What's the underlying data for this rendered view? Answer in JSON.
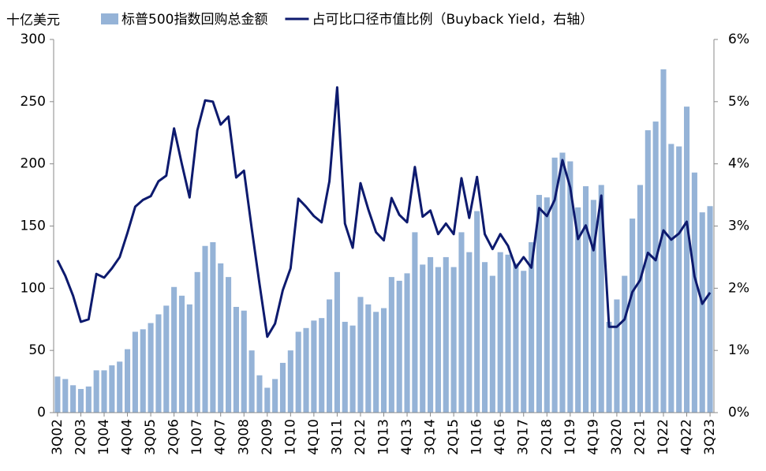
{
  "chart_data": {
    "type": "bar_line",
    "y_label": "十亿美元",
    "categories": [
      "3Q02",
      null,
      null,
      "2Q03",
      null,
      null,
      "1Q04",
      null,
      null,
      "4Q04",
      null,
      null,
      "3Q05",
      null,
      null,
      "2Q06",
      null,
      null,
      "1Q07",
      null,
      null,
      "4Q07",
      null,
      null,
      "3Q08",
      null,
      null,
      "2Q09",
      null,
      null,
      "1Q10",
      null,
      null,
      "4Q10",
      null,
      null,
      "3Q11",
      null,
      null,
      "2Q12",
      null,
      null,
      "1Q13",
      null,
      null,
      "4Q13",
      null,
      null,
      "3Q14",
      null,
      null,
      "2Q15",
      null,
      null,
      "1Q16",
      null,
      null,
      "4Q16",
      null,
      null,
      "3Q17",
      null,
      null,
      "2Q18",
      null,
      null,
      "1Q19",
      null,
      null,
      "4Q19",
      null,
      null,
      "3Q20",
      null,
      null,
      "2Q21",
      null,
      null,
      "1Q22",
      null,
      null,
      "4Q22",
      null,
      null,
      "3Q23"
    ],
    "series": [
      {
        "name": "标普500指数回购总金额",
        "type": "bar",
        "color": "#95b3d7",
        "values": [
          29,
          27,
          22,
          19,
          21,
          34,
          34,
          38,
          41,
          51,
          65,
          67,
          72,
          79,
          86,
          101,
          94,
          87,
          113,
          134,
          137,
          120,
          109,
          85,
          82,
          50,
          30,
          20,
          27,
          40,
          50,
          65,
          68,
          74,
          76,
          91,
          113,
          73,
          70,
          93,
          87,
          81,
          84,
          109,
          106,
          112,
          145,
          119,
          125,
          117,
          125,
          117,
          145,
          129,
          162,
          121,
          110,
          129,
          127,
          120,
          114,
          137,
          175,
          173,
          205,
          209,
          202,
          165,
          182,
          171,
          183,
          73,
          91,
          110,
          156,
          183,
          227,
          234,
          276,
          216,
          214,
          246,
          193,
          161,
          166
        ]
      },
      {
        "name": "占可比口径市值比例（Buyback Yield，右轴）",
        "type": "line",
        "axis": "y2",
        "color": "#0d1a6e",
        "values": [
          2.45,
          2.2,
          1.88,
          1.46,
          1.5,
          2.23,
          2.17,
          2.32,
          2.5,
          2.89,
          3.31,
          3.42,
          3.48,
          3.72,
          3.81,
          4.57,
          4.0,
          3.46,
          4.54,
          5.02,
          5.0,
          4.63,
          4.76,
          3.78,
          3.89,
          2.96,
          2.07,
          1.22,
          1.43,
          1.97,
          2.32,
          3.44,
          3.31,
          3.16,
          3.06,
          3.72,
          5.23,
          3.04,
          2.65,
          3.69,
          3.27,
          2.9,
          2.77,
          3.45,
          3.18,
          3.06,
          3.95,
          3.15,
          3.25,
          2.87,
          3.04,
          2.87,
          3.77,
          3.13,
          3.79,
          2.87,
          2.63,
          2.87,
          2.68,
          2.33,
          2.5,
          2.33,
          3.29,
          3.16,
          3.42,
          4.06,
          3.62,
          2.79,
          3.01,
          2.61,
          3.49,
          1.38,
          1.38,
          1.5,
          1.94,
          2.13,
          2.57,
          2.45,
          2.93,
          2.78,
          2.88,
          3.07,
          2.19,
          1.75,
          1.93
        ]
      }
    ],
    "ylim": [
      0,
      300
    ],
    "yticks": [
      0,
      50,
      100,
      150,
      200,
      250,
      300
    ],
    "y2lim": [
      0,
      6
    ],
    "y2ticks": [
      {
        "value": 0,
        "label": "0%"
      },
      {
        "value": 1,
        "label": "1%"
      },
      {
        "value": 2,
        "label": "2%"
      },
      {
        "value": 3,
        "label": "3%"
      },
      {
        "value": 4,
        "label": "4%"
      },
      {
        "value": 5,
        "label": "5%"
      },
      {
        "value": 6,
        "label": "6%"
      }
    ]
  }
}
